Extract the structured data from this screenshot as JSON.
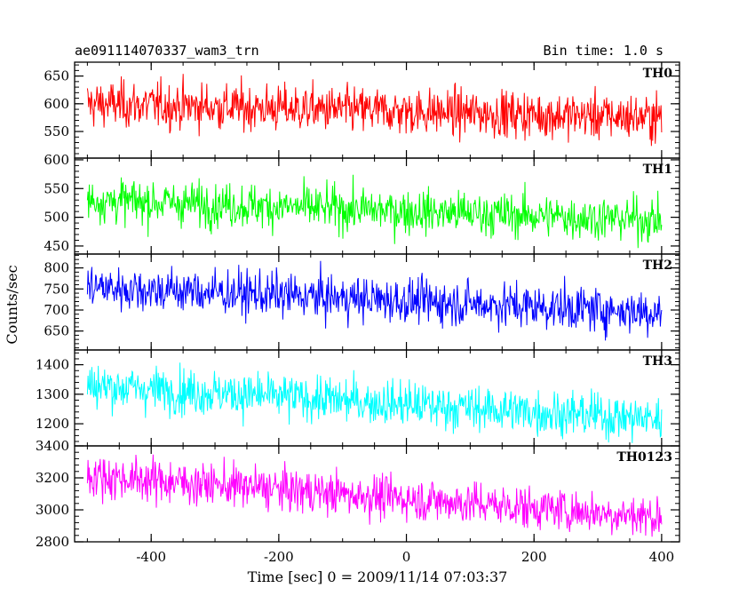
{
  "chart_data": {
    "type": "line",
    "title": "ae091114070337_wam3_trn",
    "subtitle": "Bin time: 1.0 s",
    "xlabel": "Time [sec] 0 = 2009/11/14 07:03:37",
    "ylabel": "Counts/sec",
    "xlim": [
      -520,
      428
    ],
    "x_ticks": [
      -400,
      -200,
      0,
      200,
      400
    ],
    "x_range": [
      -500,
      400
    ],
    "grid": false,
    "panels": [
      {
        "name": "TH0",
        "color": "#ff0000",
        "ylim": [
          502,
          675
        ],
        "ticks": [
          550,
          600,
          650
        ],
        "start": 600,
        "end": 575,
        "noise": 22
      },
      {
        "name": "TH1",
        "color": "#00ff00",
        "ylim": [
          436,
          603
        ],
        "ticks": [
          450,
          500,
          550,
          600
        ],
        "start": 530,
        "end": 495,
        "noise": 20
      },
      {
        "name": "TH2",
        "color": "#0000ff",
        "ylim": [
          605,
          833
        ],
        "ticks": [
          650,
          700,
          750,
          800
        ],
        "start": 755,
        "end": 695,
        "noise": 28
      },
      {
        "name": "TH3",
        "color": "#00ffff",
        "ylim": [
          1125,
          1450
        ],
        "ticks": [
          1200,
          1300,
          1400
        ],
        "start": 1330,
        "end": 1215,
        "noise": 40
      },
      {
        "name": "TH0123",
        "color": "#ff00ff",
        "ylim": [
          2800,
          3400
        ],
        "ticks": [
          2800,
          3000,
          3200,
          3400
        ],
        "start": 3215,
        "end": 2955,
        "noise": 70
      }
    ]
  }
}
